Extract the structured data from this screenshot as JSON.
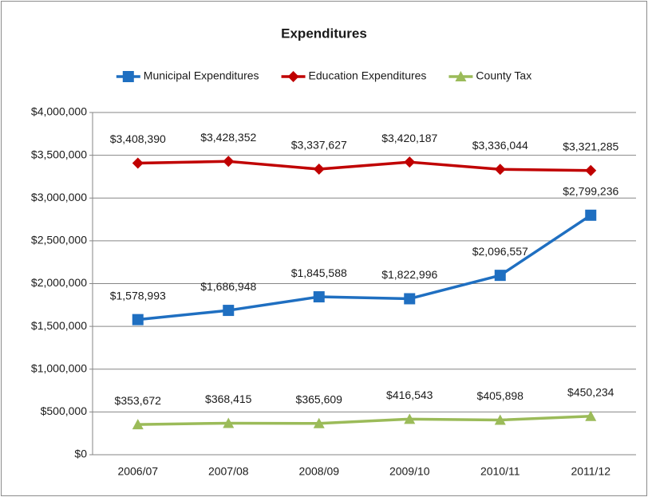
{
  "chart_data": {
    "type": "line",
    "title": "Expenditures",
    "categories": [
      "2006/07",
      "2007/08",
      "2008/09",
      "2009/10",
      "2010/11",
      "2011/12"
    ],
    "series": [
      {
        "name": "Municipal Expenditures",
        "color": "#1f6fc1",
        "marker": "square",
        "values": [
          1578993,
          1686948,
          1845588,
          1822996,
          2096557,
          2799236
        ],
        "value_labels": [
          "$1,578,993",
          "$1,686,948",
          "$1,845,588",
          "$1,822,996",
          "$2,096,557",
          "$2,799,236"
        ]
      },
      {
        "name": "Education Expenditures",
        "color": "#c00000",
        "marker": "diamond",
        "values": [
          3408390,
          3428352,
          3337627,
          3420187,
          3336044,
          3321285
        ],
        "value_labels": [
          "$3,408,390",
          "$3,428,352",
          "$3,337,627",
          "$3,420,187",
          "$3,336,044",
          "$3,321,285"
        ]
      },
      {
        "name": "County Tax",
        "color": "#9bbb59",
        "marker": "triangle",
        "values": [
          353672,
          368415,
          365609,
          416543,
          405898,
          450234
        ],
        "value_labels": [
          "$353,672",
          "$368,415",
          "$365,609",
          "$416,543",
          "$405,898",
          "$450,234"
        ]
      }
    ],
    "ylim": [
      0,
      4000000
    ],
    "yticks": [
      {
        "value": 0,
        "label": "$0"
      },
      {
        "value": 500000,
        "label": "$500,000"
      },
      {
        "value": 1000000,
        "label": "$1,000,000"
      },
      {
        "value": 1500000,
        "label": "$1,500,000"
      },
      {
        "value": 2000000,
        "label": "$2,000,000"
      },
      {
        "value": 2500000,
        "label": "$2,500,000"
      },
      {
        "value": 3000000,
        "label": "$3,000,000"
      },
      {
        "value": 3500000,
        "label": "$3,500,000"
      },
      {
        "value": 4000000,
        "label": "$4,000,000"
      }
    ],
    "grid": true,
    "legend": "top"
  }
}
